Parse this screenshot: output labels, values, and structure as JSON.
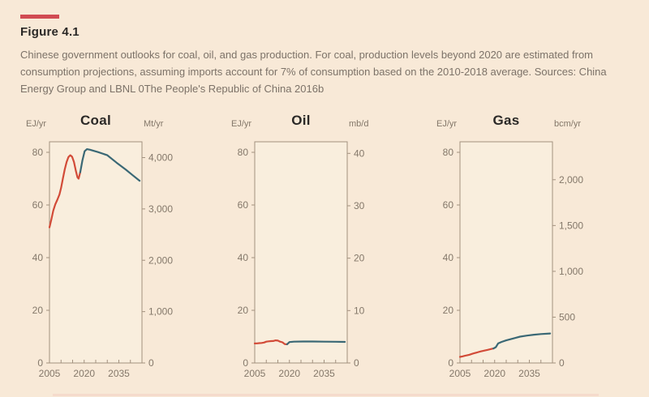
{
  "figure": {
    "title": "Figure 4.1",
    "caption": "Chinese government outlooks for coal, oil, and gas production. For coal, production levels beyond 2020 are estimated from consumption projections, assuming imports account for 7% of consumption based on the 2010-2018 average. Sources: China Energy Group and LBNL 0The People's Republic of China 2016b"
  },
  "colors": {
    "background": "#f8e9d7",
    "plot_background": "#f9eedd",
    "axis": "#a2917e",
    "tick_label": "#84786a",
    "title_text": "#2b2927",
    "caption_text": "#7c7268",
    "historical_line": "#d24b38",
    "outlook_line": "#3a6875",
    "accent_bar": "#d14b52",
    "bottom_divider": "#f5dbcc"
  },
  "chart_data": [
    {
      "type": "line",
      "title": "Coal",
      "left_axis": {
        "label": "EJ/yr",
        "ticks": [
          0,
          20,
          40,
          60,
          80
        ],
        "range": [
          0,
          84
        ]
      },
      "right_axis": {
        "label": "Mt/yr",
        "ticks": [
          0,
          1000,
          2000,
          3000,
          4000
        ],
        "tick_labels": [
          "0",
          "1,000",
          "2,000",
          "3,000",
          "4,000"
        ],
        "ej_per_unit": 0.0195
      },
      "x_axis": {
        "tick_labels": [
          2005,
          2020,
          2035
        ],
        "minor_ticks_every": 5,
        "range": [
          2005,
          2045
        ]
      },
      "legend": "none",
      "grid": false,
      "series": [
        {
          "name": "historical",
          "color_key": "historical_line",
          "points": [
            [
              2005,
              51.5
            ],
            [
              2005.8,
              54.5
            ],
            [
              2006.6,
              57.8
            ],
            [
              2007.5,
              60.2
            ],
            [
              2008.4,
              62
            ],
            [
              2009.3,
              64
            ],
            [
              2010,
              66.5
            ],
            [
              2010.8,
              70
            ],
            [
              2011.6,
              73.5
            ],
            [
              2012.4,
              76.3
            ],
            [
              2013.2,
              78.2
            ],
            [
              2014,
              78.9
            ],
            [
              2014.8,
              78.3
            ],
            [
              2015.6,
              76.3
            ],
            [
              2016.4,
              73
            ],
            [
              2017.1,
              70.5
            ],
            [
              2017.6,
              70
            ],
            [
              2018.3,
              72.4
            ]
          ]
        },
        {
          "name": "outlook",
          "color_key": "outlook_line",
          "points": [
            [
              2018.3,
              72.4
            ],
            [
              2019.2,
              76.8
            ],
            [
              2020.2,
              80.4
            ],
            [
              2021.2,
              81.2
            ],
            [
              2022.5,
              81
            ],
            [
              2026,
              80.1
            ],
            [
              2030,
              78.9
            ],
            [
              2034,
              76.1
            ],
            [
              2038,
              73.4
            ],
            [
              2041,
              71.3
            ],
            [
              2044,
              69.2
            ]
          ]
        }
      ]
    },
    {
      "type": "line",
      "title": "Oil",
      "left_axis": {
        "label": "EJ/yr",
        "ticks": [
          0,
          20,
          40,
          60,
          80
        ],
        "range": [
          0,
          84
        ]
      },
      "right_axis": {
        "label": "mb/d",
        "ticks": [
          0,
          10,
          20,
          30,
          40
        ],
        "tick_labels": [
          "0",
          "10",
          "20",
          "30",
          "40"
        ],
        "ej_per_unit": 1.99
      },
      "x_axis": {
        "tick_labels": [
          2005,
          2020,
          2035
        ],
        "minor_ticks_every": 5,
        "range": [
          2005,
          2045
        ]
      },
      "legend": "none",
      "grid": false,
      "series": [
        {
          "name": "historical",
          "color_key": "historical_line",
          "points": [
            [
              2005,
              7.4
            ],
            [
              2006,
              7.45
            ],
            [
              2007,
              7.55
            ],
            [
              2008,
              7.6
            ],
            [
              2009,
              7.75
            ],
            [
              2010,
              8.1
            ],
            [
              2011,
              8.2
            ],
            [
              2012,
              8.3
            ],
            [
              2013,
              8.35
            ],
            [
              2014,
              8.6
            ],
            [
              2015,
              8.5
            ],
            [
              2016,
              8.1
            ],
            [
              2017,
              7.85
            ],
            [
              2018,
              7.15
            ],
            [
              2019,
              7.1
            ]
          ]
        },
        {
          "name": "outlook",
          "color_key": "outlook_line",
          "points": [
            [
              2019,
              7.1
            ],
            [
              2020,
              7.95
            ],
            [
              2022,
              8.1
            ],
            [
              2026,
              8.15
            ],
            [
              2030,
              8.15
            ],
            [
              2035,
              8.1
            ],
            [
              2040,
              8.05
            ],
            [
              2044,
              8.0
            ]
          ]
        }
      ]
    },
    {
      "type": "line",
      "title": "Gas",
      "left_axis": {
        "label": "EJ/yr",
        "ticks": [
          0,
          20,
          40,
          60,
          80
        ],
        "range": [
          0,
          84
        ]
      },
      "right_axis": {
        "label": "bcm/yr",
        "ticks": [
          0,
          500,
          1000,
          1500,
          2000
        ],
        "tick_labels": [
          "0",
          "500",
          "1,000",
          "1,500",
          "2,000"
        ],
        "ej_per_unit": 0.0348
      },
      "x_axis": {
        "tick_labels": [
          2005,
          2020,
          2035
        ],
        "minor_ticks_every": 5,
        "range": [
          2005,
          2045
        ]
      },
      "legend": "none",
      "grid": false,
      "series": [
        {
          "name": "historical",
          "color_key": "historical_line",
          "points": [
            [
              2005,
              2.3
            ],
            [
              2006,
              2.5
            ],
            [
              2007,
              2.7
            ],
            [
              2008,
              2.9
            ],
            [
              2009,
              3.1
            ],
            [
              2010,
              3.4
            ],
            [
              2011,
              3.65
            ],
            [
              2012,
              3.9
            ],
            [
              2013,
              4.15
            ],
            [
              2014,
              4.4
            ],
            [
              2015,
              4.6
            ],
            [
              2016,
              4.8
            ],
            [
              2017,
              5.0
            ],
            [
              2018,
              5.2
            ],
            [
              2019.5,
              5.5
            ]
          ]
        },
        {
          "name": "outlook",
          "color_key": "outlook_line",
          "points": [
            [
              2019.5,
              5.5
            ],
            [
              2020.5,
              6.0
            ],
            [
              2021.5,
              7.4
            ],
            [
              2023,
              8.0
            ],
            [
              2025,
              8.6
            ],
            [
              2028,
              9.3
            ],
            [
              2031,
              10.0
            ],
            [
              2034,
              10.4
            ],
            [
              2037,
              10.75
            ],
            [
              2040,
              11.0
            ],
            [
              2044,
              11.2
            ]
          ]
        }
      ]
    }
  ]
}
